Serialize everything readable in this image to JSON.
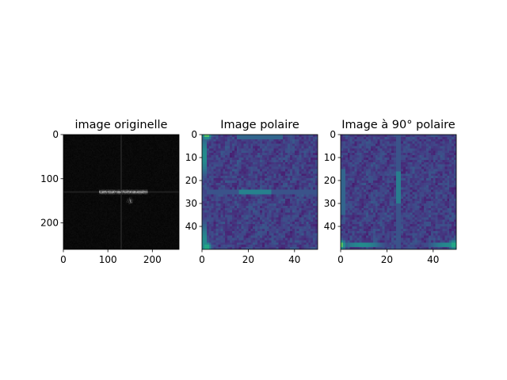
{
  "figure": {
    "background": "#ffffff"
  },
  "chart_data": [
    {
      "type": "heatmap",
      "title": "image originelle",
      "colormap": "gray",
      "xlim": [
        0,
        260
      ],
      "ylim": [
        260,
        0
      ],
      "xticks": [
        0,
        100,
        200
      ],
      "yticks": [
        0,
        100,
        200
      ],
      "xticklabels": [
        "0",
        "100",
        "200"
      ],
      "yticklabels": [
        "0",
        "100",
        "200"
      ],
      "grid": false,
      "features": [
        {
          "kind": "cross",
          "x": 130,
          "y": 130,
          "intensity": 0.12
        },
        {
          "kind": "band",
          "y": 130,
          "x_range": [
            80,
            190
          ],
          "intensity": 0.9
        },
        {
          "kind": "blob",
          "x": 150,
          "y": 150,
          "intensity": 0.6
        }
      ]
    },
    {
      "type": "heatmap",
      "title": "Image polaire",
      "colormap": "viridis",
      "xlim": [
        0,
        50
      ],
      "ylim": [
        50,
        0
      ],
      "xticks": [
        0,
        20,
        40
      ],
      "yticks": [
        0,
        10,
        20,
        30,
        40
      ],
      "xticklabels": [
        "0",
        "20",
        "40"
      ],
      "yticklabels": [
        "0",
        "10",
        "20",
        "30",
        "40"
      ],
      "grid": false,
      "features": [
        {
          "kind": "hline",
          "y": 25,
          "x_range": [
            2,
            50
          ],
          "intensity": 0.55
        },
        {
          "kind": "hline-peak",
          "y": 25,
          "x_range": [
            16,
            30
          ],
          "intensity": 0.95
        },
        {
          "kind": "vedge",
          "x": 1,
          "y_range": [
            0,
            50
          ],
          "intensity": 0.8
        },
        {
          "kind": "corner",
          "x": 2,
          "y": 0,
          "intensity": 1.0
        },
        {
          "kind": "corner",
          "x": 2,
          "y": 49,
          "intensity": 0.9
        },
        {
          "kind": "hline",
          "y": 1,
          "x_range": [
            15,
            35
          ],
          "intensity": 0.7
        }
      ]
    },
    {
      "type": "heatmap",
      "title": "Image à 90° polaire",
      "colormap": "viridis",
      "xlim": [
        0,
        50
      ],
      "ylim": [
        50,
        0
      ],
      "xticks": [
        0,
        20,
        40
      ],
      "yticks": [
        0,
        10,
        20,
        30,
        40
      ],
      "xticklabels": [
        "0",
        "20",
        "40"
      ],
      "yticklabels": [
        "0",
        "10",
        "20",
        "30",
        "40"
      ],
      "grid": false,
      "features": [
        {
          "kind": "vline",
          "x": 25,
          "y_range": [
            0,
            50
          ],
          "intensity": 0.55
        },
        {
          "kind": "vline-peak",
          "x": 25,
          "y_range": [
            16,
            30
          ],
          "intensity": 0.9
        },
        {
          "kind": "hedge",
          "y": 48,
          "x_range": [
            0,
            50
          ],
          "intensity": 0.8
        },
        {
          "kind": "corner",
          "x": 0,
          "y": 48,
          "intensity": 1.0
        },
        {
          "kind": "corner",
          "x": 49,
          "y": 48,
          "intensity": 0.9
        },
        {
          "kind": "vline",
          "x": 1,
          "y_range": [
            15,
            35
          ],
          "intensity": 0.7
        }
      ]
    }
  ]
}
